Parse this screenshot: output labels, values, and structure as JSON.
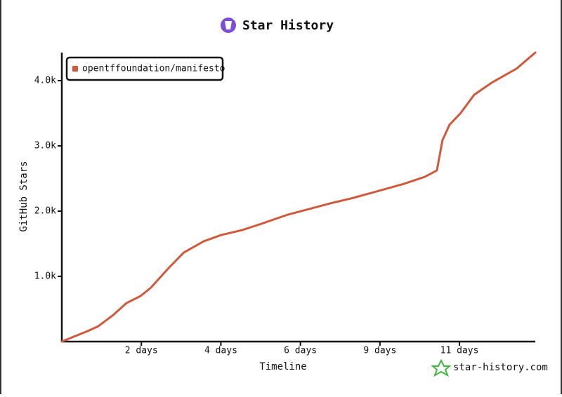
{
  "chart_data": {
    "type": "line",
    "title": "Star History",
    "x_label": "Timeline",
    "y_label": "GitHub Stars",
    "watermark": "star-history.com",
    "legend_position": "upper-left",
    "x": [
      0,
      0.23,
      0.7,
      0.99,
      1.37,
      1.75,
      2.13,
      2.41,
      2.89,
      3.3,
      3.84,
      4.31,
      4.88,
      5.45,
      6.11,
      6.68,
      7.25,
      7.82,
      8.58,
      9.25,
      9.82,
      10.14,
      10.29,
      10.48,
      10.77,
      11.15,
      11.62,
      12.29,
      12.8
    ],
    "series": [
      {
        "name": "opentffoundation/manifesto",
        "color": "#d0593b",
        "values": [
          0,
          54,
          161,
          237,
          398,
          591,
          699,
          828,
          1129,
          1366,
          1538,
          1634,
          1710,
          1817,
          1946,
          2032,
          2118,
          2194,
          2312,
          2419,
          2527,
          2624,
          3086,
          3323,
          3495,
          3785,
          3968,
          4183,
          4430
        ]
      }
    ],
    "xlim": [
      0,
      12.8
    ],
    "xticks": [
      {
        "value": 2.15,
        "label": "2 days"
      },
      {
        "value": 4.3,
        "label": "4 days"
      },
      {
        "value": 6.45,
        "label": "6 days"
      },
      {
        "value": 8.6,
        "label": "9 days"
      },
      {
        "value": 10.75,
        "label": "11 days"
      }
    ],
    "ylim": [
      0,
      4430
    ],
    "yticks": [
      {
        "value": 1000,
        "label": "1.0k"
      },
      {
        "value": 2000,
        "label": "2.0k"
      },
      {
        "value": 3000,
        "label": "3.0k"
      },
      {
        "value": 4000,
        "label": "4.0k"
      }
    ],
    "grid": false
  }
}
